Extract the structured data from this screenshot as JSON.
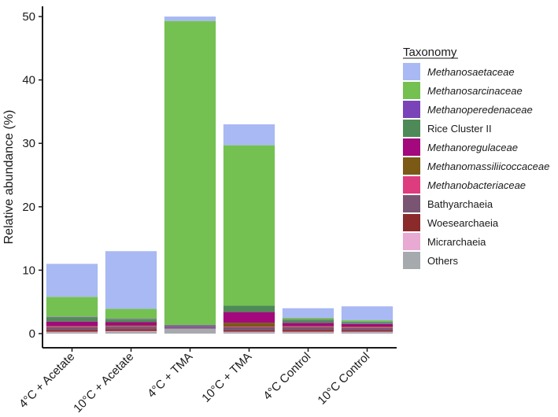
{
  "chart_data": {
    "type": "bar",
    "stacked": true,
    "title": "",
    "xlabel": "",
    "ylabel": "Relative abundance (%)",
    "ylim": [
      0,
      51
    ],
    "yticks": [
      0,
      10,
      20,
      30,
      40,
      50
    ],
    "grid": false,
    "legend_position": "right",
    "legend_title": "Taxonomy",
    "categories": [
      "4°C + Acetate",
      "10°C + Acetate",
      "4°C + TMA",
      "10°C + TMA",
      "4°C Control",
      "10°C Control"
    ],
    "series": [
      {
        "name": "Others",
        "italic": false,
        "color": "#a6a9ad",
        "values": [
          0.2,
          0.3,
          0.8,
          0.2,
          0.2,
          0.2
        ]
      },
      {
        "name": "Micrarchaeia",
        "italic": false,
        "color": "#e8a9d3",
        "values": [
          0.1,
          0.1,
          0.0,
          0.1,
          0.1,
          0.1
        ]
      },
      {
        "name": "Woesearchaeia",
        "italic": false,
        "color": "#8b2a2a",
        "values": [
          0.3,
          0.3,
          0.0,
          0.2,
          0.3,
          0.2
        ]
      },
      {
        "name": "Bathyarchaeia",
        "italic": false,
        "color": "#7a5573",
        "values": [
          0.4,
          0.4,
          0.1,
          0.5,
          0.4,
          0.4
        ]
      },
      {
        "name": "Methanobacteriaceae",
        "italic": true,
        "color": "#dd3d7e",
        "values": [
          0.1,
          0.1,
          0.0,
          0.1,
          0.1,
          0.1
        ]
      },
      {
        "name": "Methanomassiliicoccaceae",
        "italic": true,
        "color": "#7a5a14",
        "values": [
          0.1,
          0.1,
          0.0,
          0.6,
          0.1,
          0.1
        ]
      },
      {
        "name": "Methanoregulaceae",
        "italic": true,
        "color": "#a3087d",
        "values": [
          0.7,
          0.5,
          0.1,
          1.7,
          0.5,
          0.4
        ]
      },
      {
        "name": "Rice Cluster II",
        "italic": false,
        "color": "#4e8a58",
        "values": [
          0.6,
          0.4,
          0.1,
          1.0,
          0.4,
          0.2
        ]
      },
      {
        "name": "Methanoperedenaceae",
        "italic": true,
        "color": "#7a44b8",
        "values": [
          0.1,
          0.1,
          0.2,
          0.0,
          0.1,
          0.1
        ]
      },
      {
        "name": "Methanosarcinaceae",
        "italic": true,
        "color": "#74c152",
        "values": [
          3.2,
          1.6,
          48.0,
          25.3,
          0.3,
          0.3
        ]
      },
      {
        "name": "Methanosaetaceae",
        "italic": true,
        "color": "#a8b9f3",
        "values": [
          5.2,
          9.1,
          0.7,
          3.3,
          1.5,
          2.2
        ]
      }
    ],
    "legend_order": [
      "Methanosaetaceae",
      "Methanosarcinaceae",
      "Methanoperedenaceae",
      "Rice Cluster II",
      "Methanoregulaceae",
      "Methanomassiliicoccaceae",
      "Methanobacteriaceae",
      "Bathyarchaeia",
      "Woesearchaeia",
      "Micrarchaeia",
      "Others"
    ]
  }
}
